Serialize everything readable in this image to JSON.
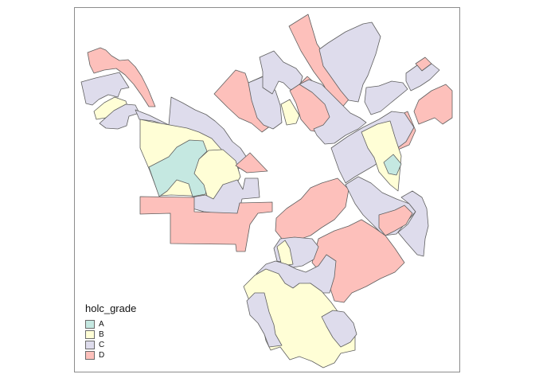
{
  "legend": {
    "title": "holc_grade",
    "items": [
      {
        "label": "A",
        "color": "#c5e8e1"
      },
      {
        "label": "B",
        "color": "#fffed6"
      },
      {
        "label": "C",
        "color": "#dedcec"
      },
      {
        "label": "D",
        "color": "#fdc0bb"
      }
    ]
  },
  "colors": {
    "A": "#c5e8e1",
    "B": "#fffed6",
    "C": "#dedcec",
    "D": "#fdc0bb",
    "border": "#5f5f5f",
    "frame": "#8c8c8c"
  }
}
